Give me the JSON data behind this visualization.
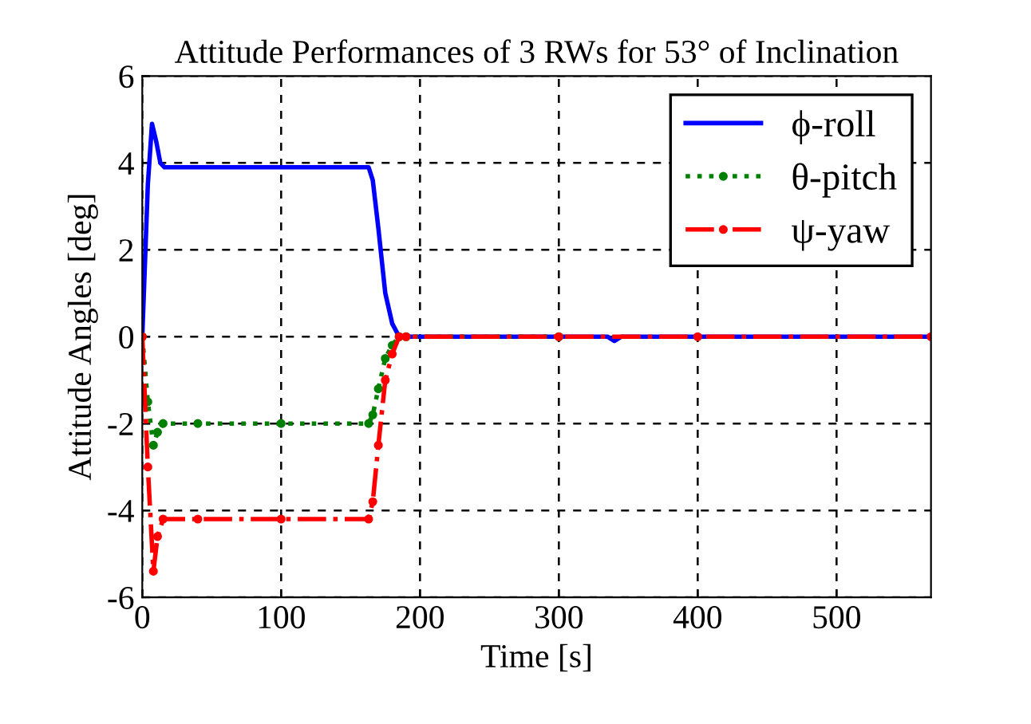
{
  "chart_data": {
    "type": "line",
    "title": "Attitude Performances of 3 RWs for 53° of Inclination",
    "xlabel": "Time [s]",
    "ylabel": "Attitude Angles [deg]",
    "xlim": [
      0,
      568
    ],
    "ylim": [
      -6,
      6
    ],
    "xticks": [
      0,
      100,
      200,
      300,
      400,
      500
    ],
    "yticks": [
      -6,
      -4,
      -2,
      0,
      2,
      4,
      6
    ],
    "grid": true,
    "legend": "top right",
    "series": [
      {
        "name": "ϕ-roll",
        "color": "#0000ff",
        "line_style": "solid",
        "marker": "none",
        "x": [
          0,
          4,
          7,
          10,
          13,
          16,
          40,
          100,
          163,
          166,
          170,
          175,
          180,
          185,
          190,
          300,
          335,
          340,
          345,
          400,
          568
        ],
        "values": [
          0,
          3.5,
          4.9,
          4.5,
          4.0,
          3.9,
          3.9,
          3.9,
          3.9,
          3.6,
          2.5,
          1.0,
          0.3,
          0,
          0,
          0,
          0,
          -0.1,
          0,
          0,
          0
        ]
      },
      {
        "name": "θ-pitch",
        "color": "#008000",
        "line_style": "dotted",
        "marker": "circle",
        "x": [
          0,
          4,
          8,
          11,
          15,
          40,
          100,
          163,
          166,
          170,
          175,
          180,
          185,
          190,
          300
        ],
        "values": [
          0,
          -1.5,
          -2.5,
          -2.2,
          -2.0,
          -2.0,
          -2.0,
          -2.0,
          -1.8,
          -1.2,
          -0.5,
          -0.2,
          0,
          0,
          0
        ]
      },
      {
        "name": "ψ-yaw",
        "color": "#ff0000",
        "line_style": "dashdot",
        "marker": "circle",
        "x": [
          0,
          4,
          8,
          11,
          15,
          40,
          100,
          163,
          166,
          170,
          175,
          180,
          185,
          190,
          300,
          400,
          568
        ],
        "values": [
          0,
          -3.0,
          -5.4,
          -4.6,
          -4.2,
          -4.2,
          -4.2,
          -4.2,
          -3.8,
          -2.5,
          -1.0,
          -0.4,
          0,
          0,
          0,
          0,
          0
        ]
      }
    ]
  }
}
